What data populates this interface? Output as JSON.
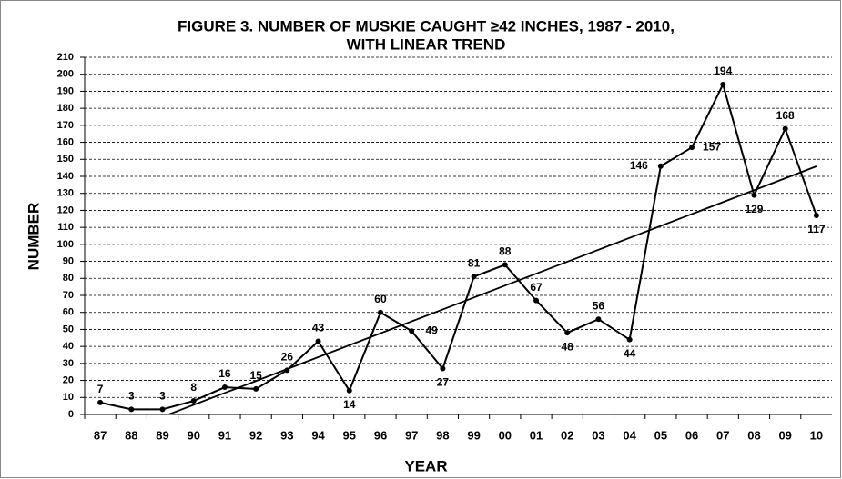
{
  "chart_data": {
    "type": "line",
    "title": [
      "FIGURE 3. NUMBER OF MUSKIE CAUGHT ≥42 INCHES, 1987 - 2010,",
      "WITH LINEAR TREND"
    ],
    "xlabel": "YEAR",
    "ylabel": "NUMBER",
    "categories": [
      "87",
      "88",
      "89",
      "90",
      "91",
      "92",
      "93",
      "94",
      "95",
      "96",
      "97",
      "98",
      "99",
      "00",
      "01",
      "02",
      "03",
      "04",
      "05",
      "06",
      "07",
      "08",
      "09",
      "10"
    ],
    "values": [
      7,
      3,
      3,
      8,
      16,
      15,
      26,
      43,
      14,
      60,
      49,
      27,
      81,
      88,
      67,
      48,
      56,
      44,
      146,
      157,
      194,
      129,
      168,
      117
    ],
    "color": "#000000",
    "trend": "linear",
    "ylim": [
      0,
      210
    ],
    "yticks": [
      0,
      10,
      20,
      30,
      40,
      50,
      60,
      70,
      80,
      90,
      100,
      110,
      120,
      130,
      140,
      150,
      160,
      170,
      180,
      190,
      200,
      210
    ],
    "grid": true
  }
}
